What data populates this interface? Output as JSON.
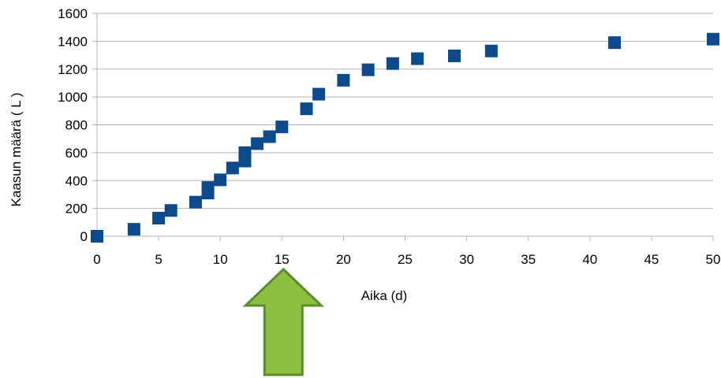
{
  "chart_data": {
    "type": "scatter",
    "xlabel": "Aika (d)",
    "ylabel": "Kaasun määrä ( L )",
    "xlim": [
      0,
      50
    ],
    "ylim": [
      0,
      1600
    ],
    "xticks": [
      0,
      5,
      10,
      15,
      20,
      25,
      30,
      35,
      40,
      45,
      50
    ],
    "yticks": [
      0,
      200,
      400,
      600,
      800,
      1000,
      1200,
      1400,
      1600
    ],
    "grid": "horizontal",
    "legend": "none",
    "marker": "square",
    "series": [
      {
        "x": [
          0,
          3,
          5,
          6,
          8,
          9,
          9,
          10,
          11,
          12,
          12,
          13,
          14,
          15,
          17,
          18,
          20,
          22,
          24,
          26,
          29,
          32,
          42,
          50
        ],
        "y": [
          0,
          50,
          130,
          185,
          245,
          310,
          350,
          405,
          490,
          540,
          600,
          665,
          715,
          785,
          915,
          1020,
          1120,
          1195,
          1240,
          1275,
          1295,
          1330,
          1390,
          1415
        ]
      }
    ],
    "colors": {
      "marker": "#0d4a8c",
      "grid": "#b3b3b3",
      "axis": "#b3b3b3",
      "arrow_fill": "#8dc040",
      "arrow_stroke": "#5e8a2c"
    }
  },
  "annotation": {
    "kind": "up-arrow",
    "points_to_x": 15
  }
}
